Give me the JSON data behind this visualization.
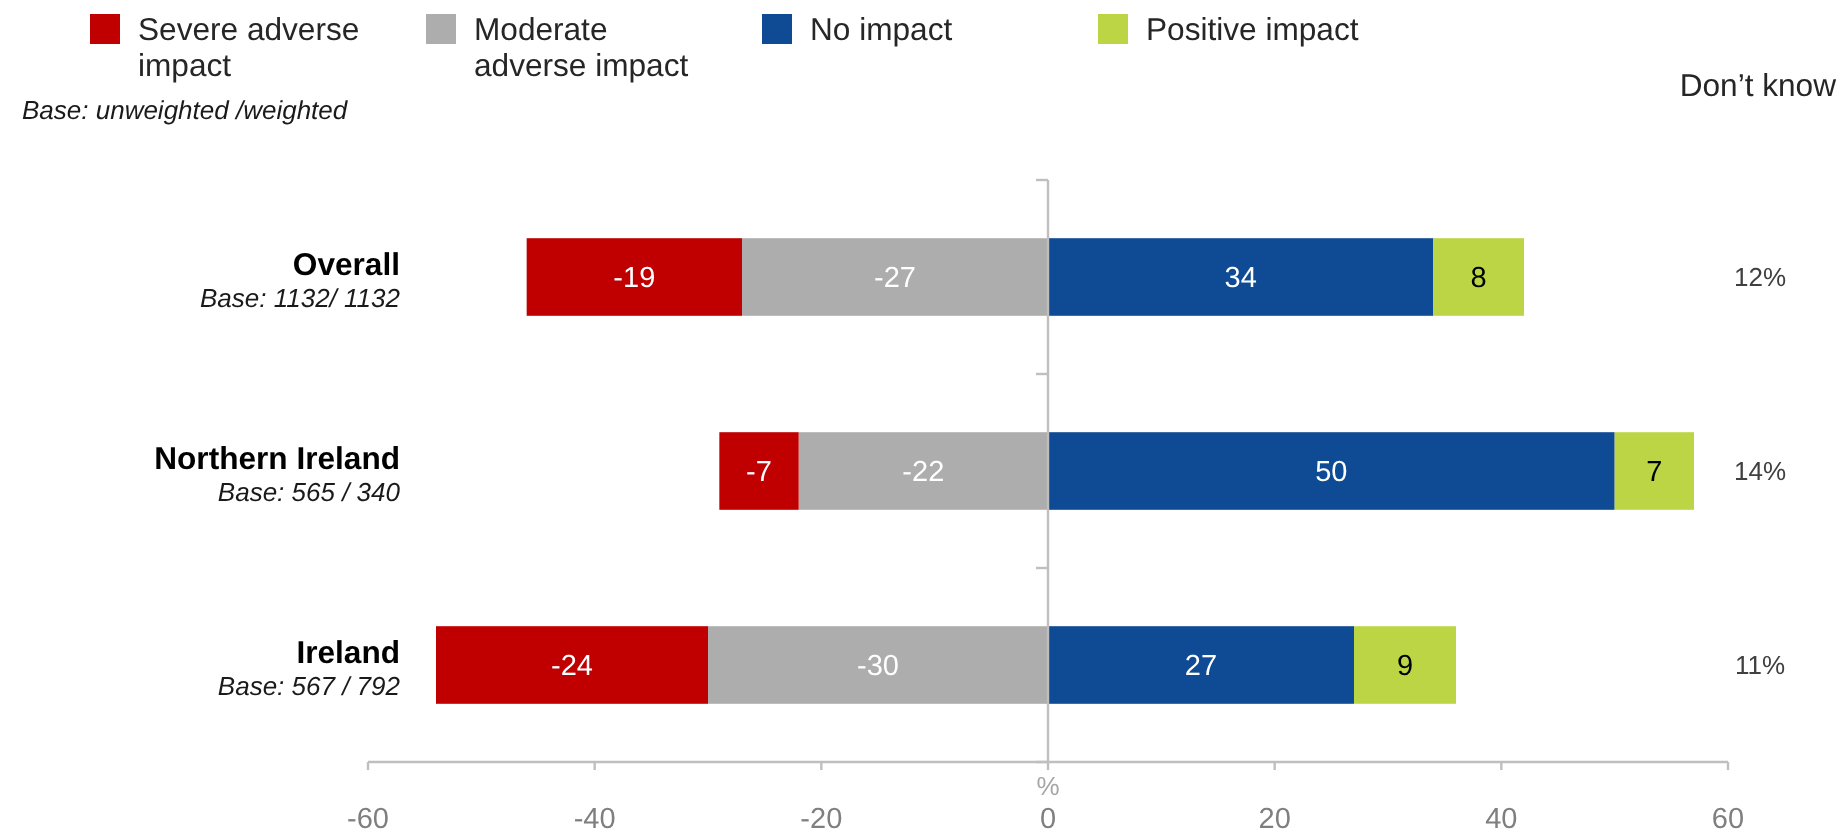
{
  "chart_data": {
    "type": "bar",
    "orientation": "horizontal",
    "stacked": true,
    "categories": [
      "Overall",
      "Northern Ireland",
      "Ireland"
    ],
    "series": [
      {
        "name": "Moderate adverse impact",
        "color": "#adadad",
        "values": [
          -27,
          -22,
          -30
        ]
      },
      {
        "name": "Severe adverse impact",
        "color": "#c00000",
        "values": [
          -19,
          -7,
          -24
        ]
      },
      {
        "name": "No impact",
        "color": "#0e4b94",
        "values": [
          34,
          50,
          27
        ]
      },
      {
        "name": "Positive impact",
        "color": "#bcd545",
        "values": [
          8,
          7,
          9
        ]
      }
    ],
    "xlim": [
      -60,
      60
    ],
    "xticks": [
      -60,
      -40,
      -20,
      0,
      20,
      40,
      60
    ],
    "xlabel": "%",
    "data_labels": true,
    "legend": "top",
    "annotations": [
      "Base: unweighted /weighted",
      "Don’t know",
      "Base: 1132/ 1132",
      "12%",
      "Base: 565 / 340",
      "14%",
      "Base: 567 / 792",
      "11%"
    ]
  }
}
